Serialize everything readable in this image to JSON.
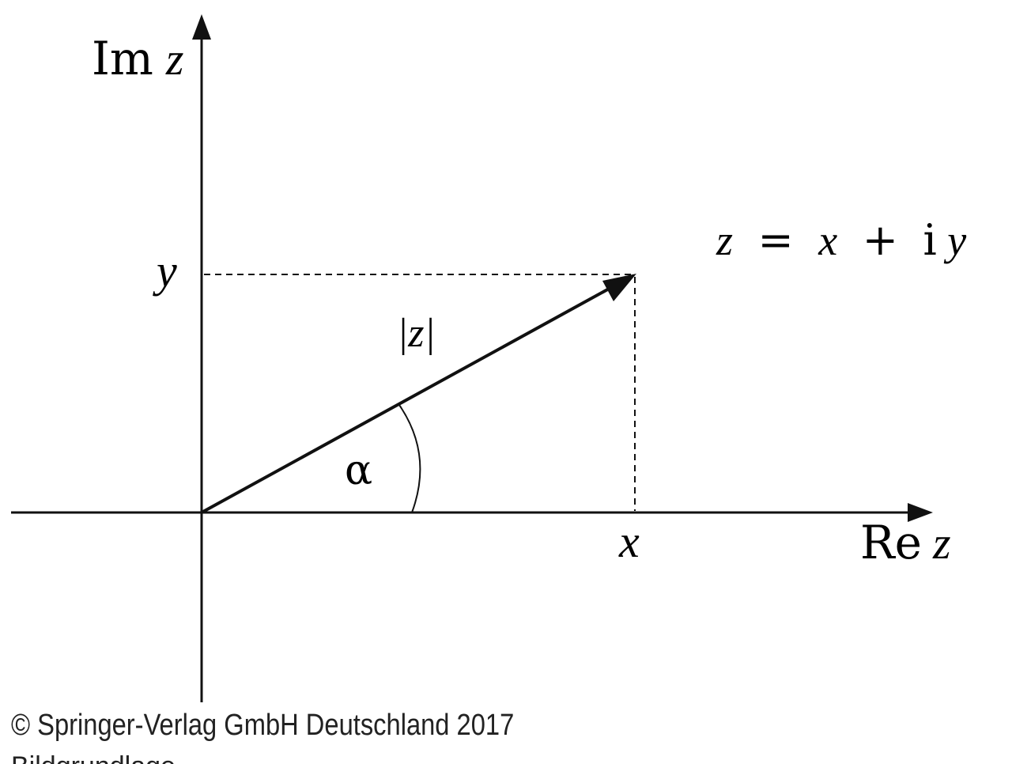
{
  "axes": {
    "vertical_label_upright": "Im",
    "vertical_label_var": "z",
    "horizontal_label_upright": "Re",
    "horizontal_label_var": "z"
  },
  "point": {
    "y_label": "y",
    "x_label": "x"
  },
  "vector": {
    "magnitude_label": "|z|",
    "angle_label": "α"
  },
  "equation": {
    "lhs": "z",
    "equals": "=",
    "x_term": "x",
    "plus": "+",
    "imag_unit": "i",
    "y_term": "y"
  },
  "footer": {
    "copyright": "© Springer-Verlag GmbH Deutschland 2017",
    "clipped_text": "Bildgrundlage"
  },
  "colors": {
    "stroke": "#111111",
    "background": "#ffffff"
  }
}
